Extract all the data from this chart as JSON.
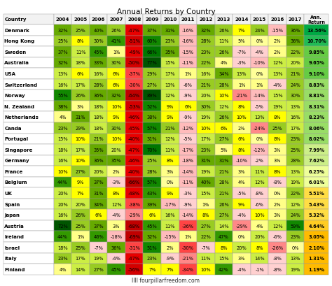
{
  "title": "Annual Returns by Country",
  "footer": "IIII fourpillarfreedom.com",
  "countries": [
    "Denmark",
    "Hong Kong",
    "Sweden",
    "Australia",
    "USA",
    "Switzerland",
    "Norway",
    "N. Zealand",
    "Netherlands",
    "Canda",
    "Portugal",
    "Singapore",
    "Germany",
    "France",
    "Belgium",
    "UK",
    "Spain",
    "Japan",
    "Austria",
    "Ireland",
    "Israel",
    "Italy",
    "Finland"
  ],
  "ann_returns": [
    13.56,
    10.7,
    9.85,
    9.65,
    9.1,
    8.83,
    8.81,
    8.31,
    8.23,
    8.06,
    8.02,
    7.99,
    7.62,
    6.25,
    6.01,
    5.51,
    5.43,
    5.32,
    4.64,
    3.05,
    2.1,
    1.31,
    1.19
  ],
  "data": [
    [
      32,
      25,
      40,
      26,
      -47,
      37,
      31,
      -16,
      32,
      26,
      7,
      24,
      -15,
      36
    ],
    [
      25,
      8,
      30,
      41,
      -51,
      60,
      23,
      -16,
      28,
      11,
      5,
      0,
      2,
      36
    ],
    [
      37,
      11,
      45,
      1,
      -49,
      66,
      35,
      -15,
      23,
      26,
      -7,
      -4,
      2,
      22
    ],
    [
      32,
      18,
      33,
      30,
      -50,
      77,
      15,
      -11,
      22,
      4,
      -3,
      -10,
      12,
      20
    ],
    [
      13,
      6,
      16,
      6,
      -37,
      29,
      17,
      1,
      16,
      34,
      13,
      0,
      13,
      21
    ],
    [
      16,
      17,
      28,
      6,
      -30,
      27,
      13,
      -6,
      21,
      28,
      1,
      1,
      -4,
      24
    ],
    [
      55,
      26,
      36,
      32,
      -64,
      89,
      12,
      -9,
      20,
      10,
      -21,
      -14,
      15,
      30
    ],
    [
      38,
      3,
      18,
      10,
      -53,
      52,
      9,
      6,
      30,
      12,
      8,
      -5,
      19,
      13
    ],
    [
      4,
      31,
      18,
      9,
      -46,
      38,
      9,
      -9,
      19,
      26,
      10,
      13,
      8,
      16
    ],
    [
      23,
      29,
      18,
      30,
      -45,
      57,
      21,
      -12,
      10,
      6,
      2,
      -24,
      25,
      17
    ],
    [
      15,
      10,
      21,
      10,
      -40,
      31,
      12,
      -5,
      17,
      27,
      6,
      0,
      8,
      23
    ],
    [
      18,
      17,
      35,
      20,
      -47,
      70,
      11,
      -17,
      23,
      5,
      8,
      -12,
      3,
      25
    ],
    [
      16,
      10,
      36,
      35,
      -46,
      25,
      8,
      -18,
      31,
      31,
      -10,
      -2,
      3,
      28
    ],
    [
      10,
      27,
      20,
      2,
      -40,
      28,
      3,
      -14,
      19,
      21,
      3,
      11,
      8,
      13
    ],
    [
      44,
      9,
      37,
      -3,
      -66,
      57,
      0,
      -11,
      40,
      28,
      4,
      12,
      -8,
      19
    ],
    [
      20,
      7,
      31,
      8,
      -48,
      43,
      9,
      -3,
      15,
      21,
      -5,
      -8,
      0,
      22
    ],
    [
      20,
      20,
      34,
      12,
      -38,
      39,
      -17,
      -9,
      1,
      26,
      9,
      -6,
      2,
      12
    ],
    [
      16,
      26,
      6,
      -4,
      -29,
      6,
      16,
      -14,
      8,
      27,
      -4,
      10,
      3,
      24
    ],
    [
      72,
      25,
      37,
      3,
      -68,
      45,
      11,
      -36,
      27,
      14,
      -29,
      4,
      12,
      59
    ],
    [
      44,
      1,
      46,
      -18,
      -69,
      32,
      -15,
      1,
      22,
      47,
      0,
      20,
      -6,
      23
    ],
    [
      18,
      25,
      -7,
      36,
      -31,
      51,
      2,
      -30,
      -7,
      8,
      20,
      8,
      -26,
      0
    ],
    [
      23,
      17,
      19,
      -4,
      -47,
      23,
      -9,
      -21,
      11,
      15,
      3,
      14,
      -8,
      13
    ],
    [
      4,
      14,
      27,
      45,
      -56,
      7,
      7,
      -34,
      10,
      42,
      -4,
      -1,
      -8,
      19
    ]
  ],
  "header_bg": "#f2f2f2",
  "country_bg": "#ffffff",
  "border_color": "#999999"
}
